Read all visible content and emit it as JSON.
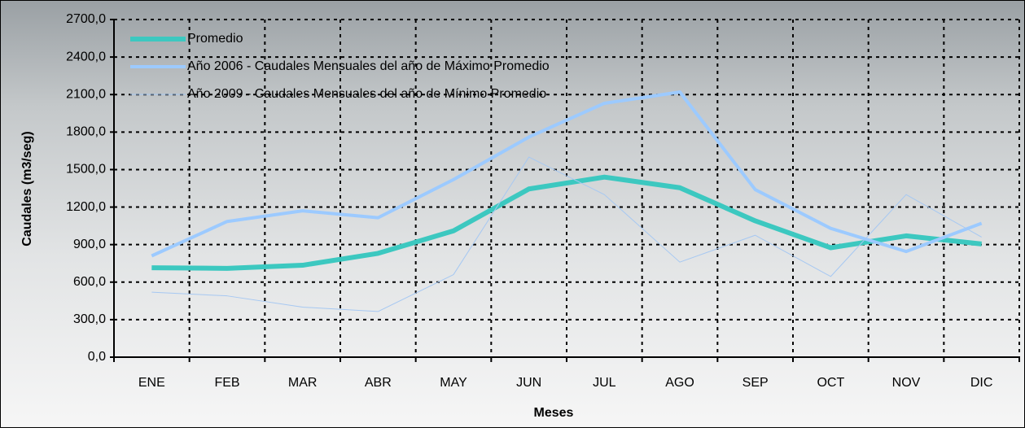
{
  "chart_data": {
    "type": "line",
    "x_label": "Meses",
    "y_label": "Caudales (m3/seg)",
    "categories": [
      "ENE",
      "FEB",
      "MAR",
      "ABR",
      "MAY",
      "JUN",
      "JUL",
      "AGO",
      "SEP",
      "OCT",
      "NOV",
      "DIC"
    ],
    "series": [
      {
        "name": "Promedio",
        "color": "#3cc8c0",
        "width": 6,
        "values": [
          715,
          710,
          735,
          830,
          1010,
          1345,
          1440,
          1355,
          1090,
          875,
          970,
          905
        ]
      },
      {
        "name": "Año 2006 - Caudales Mensuales del año de Máximo Promedio",
        "color": "#9ccaff",
        "width": 4,
        "values": [
          810,
          1085,
          1170,
          1115,
          1420,
          1760,
          2030,
          2120,
          1340,
          1030,
          845,
          1070
        ]
      },
      {
        "name": "Año 2009 - Caudales Mensuales del año de Mínimo Promedio",
        "color": "#a6c8f2",
        "width": 1,
        "values": [
          520,
          490,
          400,
          365,
          660,
          1600,
          1300,
          760,
          975,
          645,
          1300,
          960
        ]
      }
    ],
    "ylim": [
      0,
      2700
    ],
    "yticks": [
      {
        "value": 0,
        "label": "0,0"
      },
      {
        "value": 300,
        "label": "300,0"
      },
      {
        "value": 600,
        "label": "600,0"
      },
      {
        "value": 900,
        "label": "900,0"
      },
      {
        "value": 1200,
        "label": "1200,0"
      },
      {
        "value": 1500,
        "label": "1500,0"
      },
      {
        "value": 1800,
        "label": "1800,0"
      },
      {
        "value": 2100,
        "label": "2100,0"
      },
      {
        "value": 2400,
        "label": "2400,0"
      },
      {
        "value": 2700,
        "label": "2700,0"
      }
    ],
    "grid": true,
    "legend": "top-left"
  }
}
